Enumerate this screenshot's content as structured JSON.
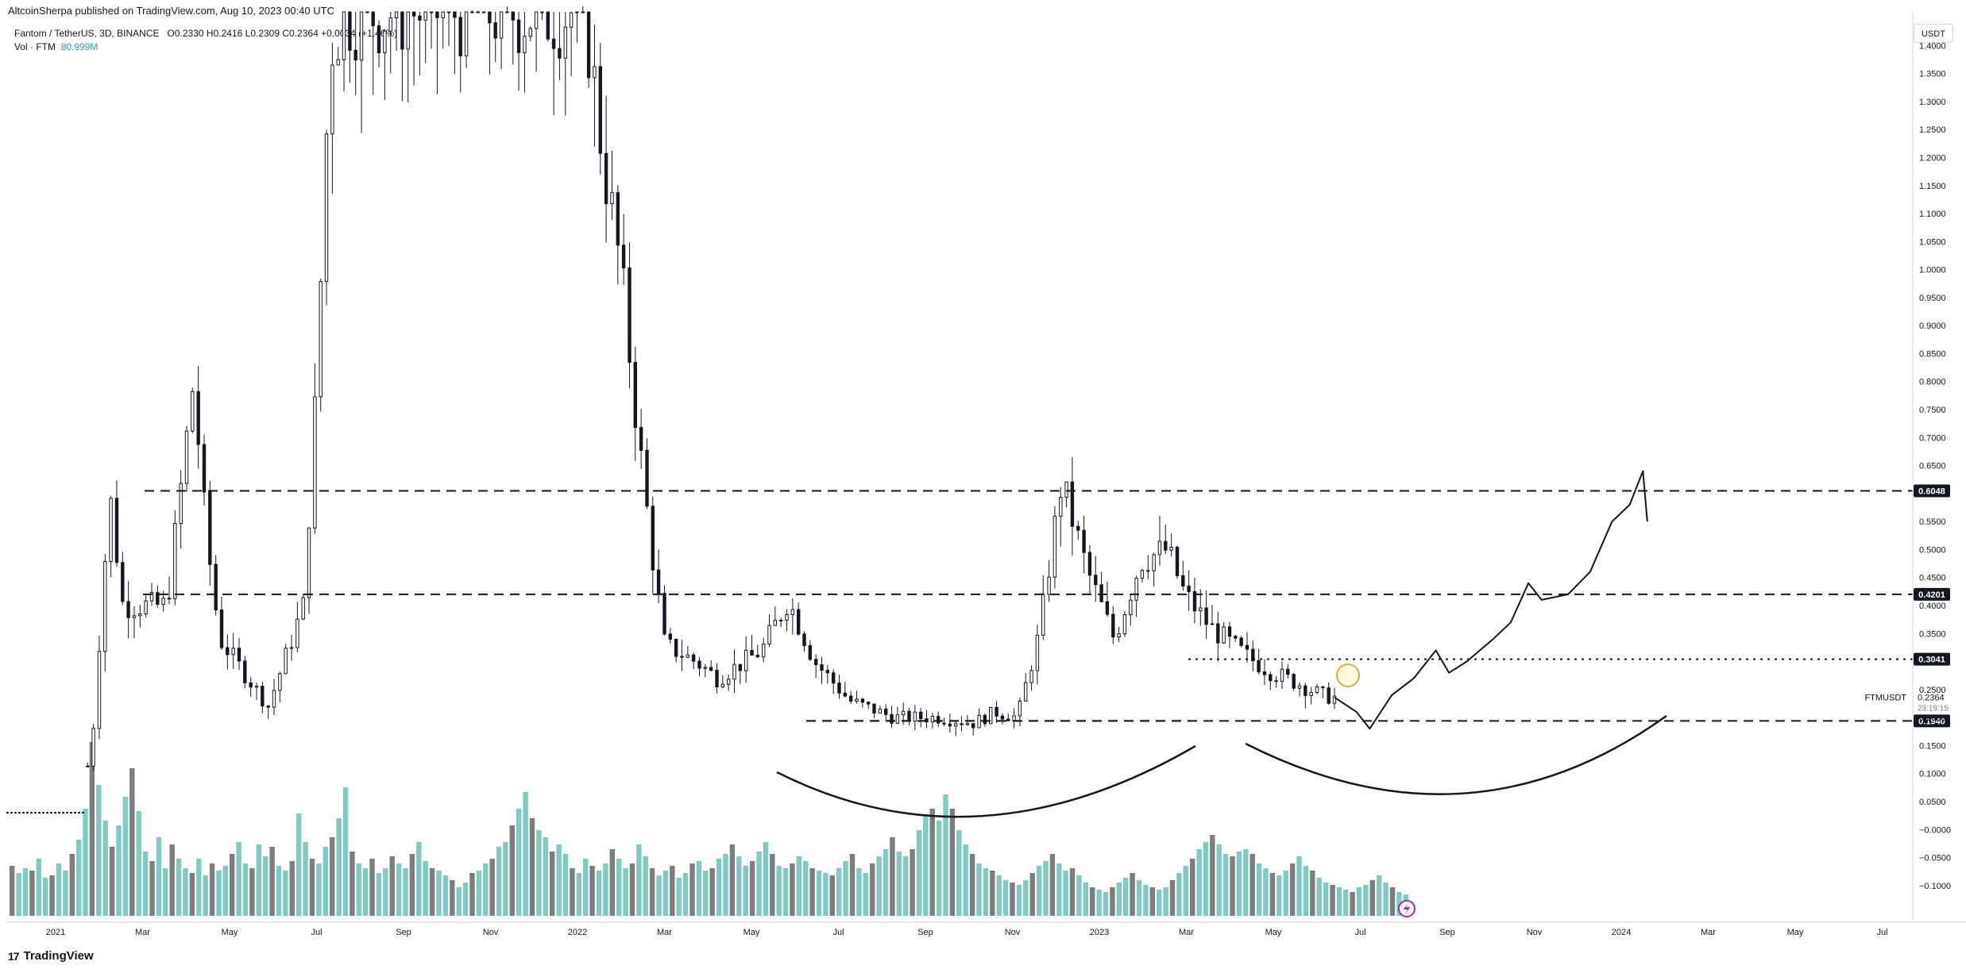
{
  "publish_line": "AltcoinSherpa published on TradingView.com, Aug 10, 2023 00:40 UTC",
  "legend": {
    "symbol": "Fantom / TetherUS, 3D, BINANCE",
    "open_label": "O",
    "open": "0.2330",
    "high_label": "H",
    "high": "0.2416",
    "low_label": "L",
    "low": "0.2309",
    "close_label": "C",
    "close": "0.2364",
    "change": "+0.0034 (+1.46%)",
    "vol_label": "Vol · FTM",
    "vol_value": "80.999M"
  },
  "currency": "USDT",
  "ticker_label": "FTMUSDT",
  "last_price": "0.2364",
  "countdown": "23:19:15",
  "logo_text": "TradingView",
  "logo_mark": "17",
  "colors": {
    "candle": "#131722",
    "volume_up": "#7fcbc3",
    "volume_down": "#7d7d7d",
    "level_line": "#131722",
    "axis_text": "#131722",
    "price_tag_bg": "#131722",
    "price_tag_text": "#ffffff",
    "circle_marker": "#c9b24a",
    "flash_icon": "#9c27b0"
  },
  "chart_data": {
    "type": "candlestick",
    "title": "Fantom / TetherUS, 3D, BINANCE",
    "y_axis_ticks": [
      "1.4000",
      "1.3500",
      "1.3000",
      "1.2500",
      "1.2000",
      "1.1500",
      "1.1000",
      "1.0500",
      "1.0000",
      "0.9500",
      "0.9000",
      "0.8500",
      "0.8000",
      "0.7500",
      "0.7000",
      "0.6500",
      "0.5500",
      "0.5000",
      "0.4500",
      "0.4000",
      "0.3500",
      "0.2500",
      "0.2000",
      "0.1500",
      "0.1000",
      "0.0500",
      "−0.0000",
      "−0.0500",
      "−0.1000"
    ],
    "x_axis_ticks": [
      "2021",
      "Mar",
      "May",
      "Jul",
      "Sep",
      "Nov",
      "2022",
      "Mar",
      "May",
      "Jul",
      "Sep",
      "Nov",
      "2023",
      "Mar",
      "May",
      "Jul",
      "Sep",
      "Nov",
      "2024",
      "Mar",
      "May",
      "Jul"
    ],
    "ylim": [
      -0.13,
      1.46
    ],
    "horizontal_levels": [
      {
        "value": 0.6048,
        "label": "0.6048",
        "style": "dashed"
      },
      {
        "value": 0.4201,
        "label": "0.4201",
        "style": "dashed"
      },
      {
        "value": 0.3041,
        "label": "0.3041",
        "style": "dotted"
      },
      {
        "value": 0.194,
        "label": "0.1940",
        "style": "dashed"
      }
    ],
    "last_price": 0.2364,
    "price_path": [
      [
        0.0,
        0.03
      ],
      [
        1.5,
        0.04
      ],
      [
        1.8,
        0.15
      ],
      [
        2.2,
        0.6
      ],
      [
        2.5,
        0.4
      ],
      [
        3.5,
        0.4
      ],
      [
        4.1,
        0.8
      ],
      [
        4.4,
        0.52
      ],
      [
        4.7,
        0.34
      ],
      [
        5.8,
        0.22
      ],
      [
        6.6,
        0.4
      ],
      [
        6.9,
        0.8
      ],
      [
        7.2,
        1.4
      ],
      [
        7.5,
        1.46
      ],
      [
        8.5,
        1.46
      ],
      [
        9.5,
        1.46
      ],
      [
        10.5,
        1.46
      ],
      [
        11.0,
        1.46
      ],
      [
        12.2,
        1.46
      ],
      [
        13.0,
        1.46
      ],
      [
        13.4,
        1.2
      ],
      [
        13.8,
        1.0
      ],
      [
        14.2,
        0.7
      ],
      [
        14.5,
        0.5
      ],
      [
        14.8,
        0.33
      ],
      [
        15.5,
        0.3
      ],
      [
        16.0,
        0.27
      ],
      [
        17.0,
        0.32
      ],
      [
        17.6,
        0.41
      ],
      [
        18.2,
        0.3
      ],
      [
        19.0,
        0.23
      ],
      [
        20.0,
        0.2
      ],
      [
        21.0,
        0.2
      ],
      [
        21.8,
        0.19
      ],
      [
        22.3,
        0.21
      ],
      [
        22.8,
        0.2
      ],
      [
        23.3,
        0.35
      ],
      [
        23.8,
        0.62
      ],
      [
        24.4,
        0.46
      ],
      [
        25.0,
        0.34
      ],
      [
        25.6,
        0.48
      ],
      [
        26.2,
        0.5
      ],
      [
        26.6,
        0.42
      ],
      [
        27.2,
        0.36
      ],
      [
        28.0,
        0.31
      ],
      [
        28.6,
        0.28
      ],
      [
        29.2,
        0.26
      ],
      [
        29.7,
        0.24
      ],
      [
        30.0,
        0.236
      ]
    ],
    "projection_path": [
      [
        30.0,
        0.236
      ],
      [
        30.5,
        0.21
      ],
      [
        30.8,
        0.18
      ],
      [
        31.3,
        0.24
      ],
      [
        31.8,
        0.27
      ],
      [
        32.3,
        0.32
      ],
      [
        32.6,
        0.28
      ],
      [
        33.0,
        0.3
      ],
      [
        33.6,
        0.34
      ],
      [
        34.0,
        0.37
      ],
      [
        34.4,
        0.44
      ],
      [
        34.7,
        0.41
      ],
      [
        35.3,
        0.42
      ],
      [
        35.8,
        0.46
      ],
      [
        36.3,
        0.55
      ],
      [
        36.7,
        0.58
      ],
      [
        37.0,
        0.64
      ],
      [
        37.1,
        0.55
      ]
    ],
    "volume_bars": {
      "scale_max": 1.0,
      "values": [
        0.21,
        0.18,
        0.2,
        0.19,
        0.24,
        0.16,
        0.17,
        0.22,
        0.19,
        0.26,
        0.32,
        0.45,
        0.73,
        0.55,
        0.4,
        0.29,
        0.38,
        0.5,
        0.62,
        0.44,
        0.27,
        0.23,
        0.33,
        0.2,
        0.3,
        0.24,
        0.2,
        0.18,
        0.24,
        0.17,
        0.22,
        0.19,
        0.21,
        0.26,
        0.31,
        0.22,
        0.2,
        0.3,
        0.25,
        0.29,
        0.21,
        0.19,
        0.23,
        0.43,
        0.31,
        0.24,
        0.22,
        0.29,
        0.33,
        0.41,
        0.54,
        0.27,
        0.22,
        0.2,
        0.24,
        0.18,
        0.2,
        0.25,
        0.22,
        0.2,
        0.26,
        0.31,
        0.23,
        0.2,
        0.19,
        0.17,
        0.15,
        0.12,
        0.14,
        0.18,
        0.19,
        0.22,
        0.24,
        0.29,
        0.31,
        0.38,
        0.45,
        0.52,
        0.41,
        0.36,
        0.33,
        0.27,
        0.3,
        0.26,
        0.2,
        0.18,
        0.24,
        0.21,
        0.19,
        0.22,
        0.28,
        0.24,
        0.2,
        0.22,
        0.3,
        0.25,
        0.2,
        0.17,
        0.19,
        0.21,
        0.16,
        0.18,
        0.22,
        0.23,
        0.19,
        0.2,
        0.24,
        0.26,
        0.3,
        0.25,
        0.21,
        0.23,
        0.27,
        0.31,
        0.26,
        0.21,
        0.2,
        0.22,
        0.25,
        0.23,
        0.2,
        0.19,
        0.18,
        0.17,
        0.2,
        0.23,
        0.26,
        0.2,
        0.18,
        0.22,
        0.25,
        0.28,
        0.33,
        0.27,
        0.25,
        0.28,
        0.36,
        0.42,
        0.45,
        0.4,
        0.51,
        0.45,
        0.36,
        0.3,
        0.26,
        0.22,
        0.2,
        0.19,
        0.17,
        0.15,
        0.14,
        0.13,
        0.15,
        0.18,
        0.21,
        0.23,
        0.26,
        0.22,
        0.19,
        0.2,
        0.17,
        0.14,
        0.12,
        0.11,
        0.1,
        0.12,
        0.14,
        0.16,
        0.18,
        0.15,
        0.13,
        0.12,
        0.11,
        0.12,
        0.15,
        0.18,
        0.21,
        0.24,
        0.28,
        0.31,
        0.34,
        0.3,
        0.26,
        0.25,
        0.27,
        0.28,
        0.26,
        0.22,
        0.2,
        0.18,
        0.17,
        0.19,
        0.22,
        0.25,
        0.21,
        0.19,
        0.16,
        0.14,
        0.13,
        0.12,
        0.11,
        0.1,
        0.12,
        0.13,
        0.15,
        0.17,
        0.14,
        0.12,
        0.1,
        0.09
      ]
    }
  }
}
